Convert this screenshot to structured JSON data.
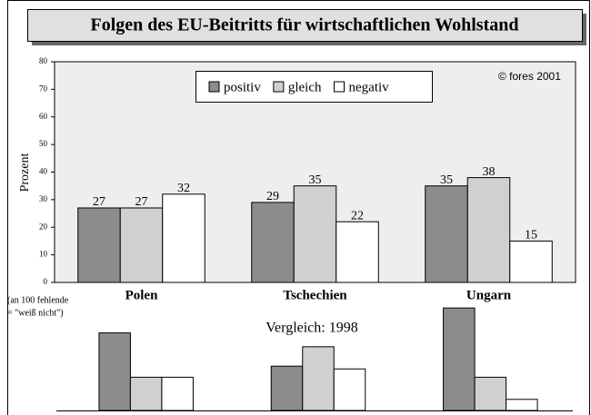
{
  "chart_data": [
    {
      "type": "bar",
      "title": "Folgen des EU-Beitritts für wirtschaftlichen Wohlstand",
      "ylabel": "Prozent",
      "copyright": "© fores 2001",
      "note": [
        "(an 100 fehlende",
        "= \"weiß nicht\")"
      ],
      "categories": [
        "Polen",
        "Tschechien",
        "Ungarn"
      ],
      "series": [
        {
          "name": "positiv",
          "color": "#8c8c8c",
          "values": [
            27,
            29,
            35
          ]
        },
        {
          "name": "gleich",
          "color": "#d0d0d0",
          "values": [
            27,
            35,
            38
          ]
        },
        {
          "name": "negativ",
          "color": "#ffffff",
          "values": [
            32,
            22,
            15
          ]
        }
      ],
      "ylim": [
        0,
        80
      ],
      "yticks": [
        0,
        10,
        20,
        30,
        40,
        50,
        60,
        70,
        80
      ]
    },
    {
      "type": "bar",
      "title": "Vergleich: 1998",
      "series": [
        {
          "color": "#8c8c8c",
          "values": [
            28,
            16,
            37
          ]
        },
        {
          "color": "#d0d0d0",
          "values": [
            12,
            23,
            12
          ]
        },
        {
          "color": "#ffffff",
          "values": [
            12,
            15,
            4
          ]
        }
      ],
      "ylim": [
        0,
        40
      ]
    }
  ]
}
